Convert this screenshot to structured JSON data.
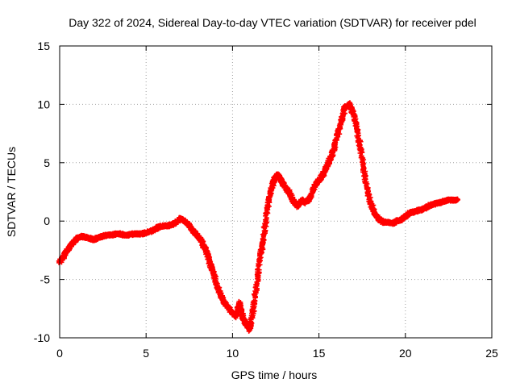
{
  "chart_data": {
    "type": "scatter",
    "title": "Day 322 of 2024, Sidereal Day-to-day VTEC variation (SDTVAR) for receiver pdel",
    "xlabel": "GPS time / hours",
    "ylabel": "SDTVAR / TECUs",
    "xlim": [
      0,
      25
    ],
    "ylim": [
      -10,
      15
    ],
    "xticks": [
      0,
      5,
      10,
      15,
      20,
      25
    ],
    "yticks": [
      -10,
      -5,
      0,
      5,
      10,
      15
    ],
    "grid": true,
    "marker": "plus",
    "color": "#ff0000",
    "series": [
      {
        "name": "SDTVAR",
        "x": [
          0,
          0.25,
          0.5,
          0.75,
          1,
          1.25,
          1.5,
          1.75,
          2,
          2.25,
          2.5,
          2.75,
          3,
          3.25,
          3.5,
          3.75,
          4,
          4.25,
          4.5,
          4.75,
          5,
          5.25,
          5.5,
          5.75,
          6,
          6.25,
          6.5,
          6.75,
          7,
          7.25,
          7.5,
          7.75,
          8,
          8.25,
          8.5,
          8.75,
          9,
          9.25,
          9.5,
          9.75,
          10,
          10.2,
          10.4,
          10.6,
          10.8,
          11,
          11.2,
          11.4,
          11.6,
          11.8,
          12,
          12.2,
          12.4,
          12.6,
          12.8,
          13,
          13.25,
          13.5,
          13.75,
          14,
          14.25,
          14.5,
          14.75,
          15,
          15.25,
          15.5,
          15.75,
          16,
          16.25,
          16.5,
          16.75,
          17,
          17.25,
          17.5,
          17.75,
          18,
          18.25,
          18.5,
          18.75,
          19,
          19.25,
          19.5,
          19.75,
          20,
          20.25,
          20.5,
          20.75,
          21,
          21.25,
          21.5,
          21.75,
          22,
          22.25,
          22.5,
          22.75,
          23
        ],
        "y": [
          -3.5,
          -3.0,
          -2.4,
          -1.9,
          -1.5,
          -1.3,
          -1.4,
          -1.5,
          -1.6,
          -1.4,
          -1.3,
          -1.2,
          -1.2,
          -1.1,
          -1.1,
          -1.2,
          -1.2,
          -1.1,
          -1.1,
          -1.1,
          -1.0,
          -0.9,
          -0.7,
          -0.5,
          -0.4,
          -0.4,
          -0.3,
          -0.1,
          0.2,
          0.0,
          -0.4,
          -0.9,
          -1.3,
          -1.8,
          -2.7,
          -3.8,
          -5.0,
          -6.1,
          -6.9,
          -7.4,
          -7.9,
          -8.1,
          -7.0,
          -8.3,
          -8.8,
          -9.3,
          -7.5,
          -5.5,
          -3.0,
          -1.5,
          1.0,
          2.5,
          3.5,
          4.0,
          3.5,
          3.0,
          2.5,
          1.8,
          1.3,
          1.8,
          1.6,
          2.0,
          3.0,
          3.5,
          4.0,
          4.8,
          5.7,
          6.9,
          8.4,
          9.7,
          10.0,
          9.2,
          7.5,
          5.3,
          3.0,
          1.5,
          0.6,
          0.1,
          -0.1,
          -0.1,
          -0.2,
          0.0,
          0.1,
          0.4,
          0.7,
          0.8,
          0.9,
          1.0,
          1.2,
          1.4,
          1.5,
          1.6,
          1.7,
          1.8,
          1.8,
          1.8
        ]
      }
    ]
  }
}
